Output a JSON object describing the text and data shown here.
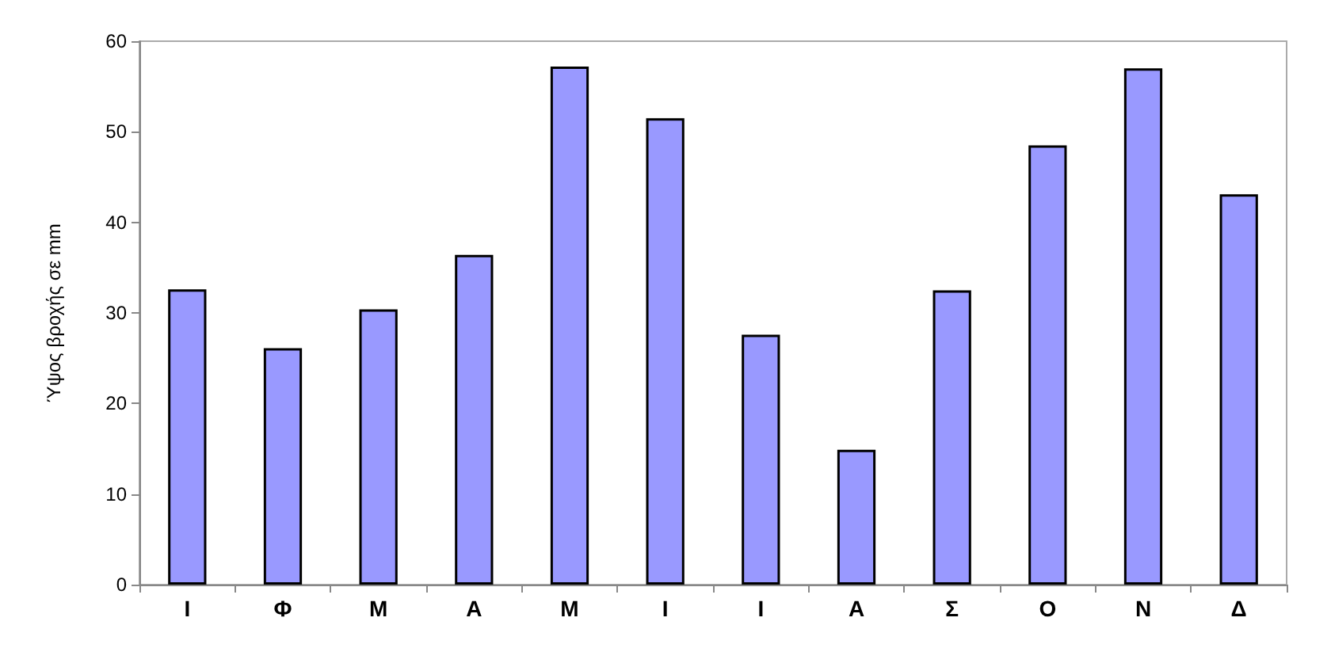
{
  "chart_data": {
    "type": "bar",
    "ylabel": "Ύψος βροχής σε mm",
    "categories": [
      "Ι",
      "Φ",
      "Μ",
      "Α",
      "Μ",
      "Ι",
      "Ι",
      "Α",
      "Σ",
      "Ο",
      "Ν",
      "Δ"
    ],
    "values": [
      32.6,
      26.1,
      30.4,
      36.4,
      57.2,
      51.5,
      27.6,
      14.9,
      32.5,
      48.5,
      57.0,
      43.1
    ],
    "color": "#9999ff",
    "ylim": [
      0,
      60
    ],
    "yticks": [
      0,
      10,
      20,
      30,
      40,
      50,
      60
    ],
    "grid": false
  }
}
